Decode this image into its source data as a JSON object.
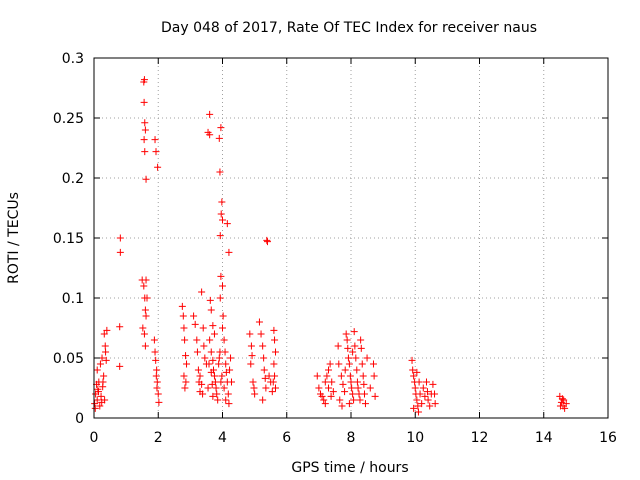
{
  "chart_data": {
    "type": "scatter",
    "title": "Day 048 of 2017, Rate Of TEC Index for receiver naus",
    "xlabel": "GPS time / hours",
    "ylabel": "ROTI / TECUs",
    "xlim": [
      0,
      16
    ],
    "ylim": [
      0,
      0.3
    ],
    "xticks": [
      0,
      2,
      4,
      6,
      8,
      10,
      12,
      14,
      16
    ],
    "yticks": [
      0,
      0.05,
      0.1,
      0.15,
      0.2,
      0.25,
      0.3
    ],
    "xtick_labels": [
      "0",
      "2",
      "4",
      "6",
      "8",
      "10",
      "12",
      "14",
      "16"
    ],
    "ytick_labels": [
      "0",
      "0.05",
      "0.1",
      "0.15",
      "0.2",
      "0.25",
      "0.3"
    ],
    "grid": true,
    "marker": "+",
    "color": "#ff0000",
    "series": [
      {
        "name": "ROTI",
        "points": [
          [
            0.02,
            0.012
          ],
          [
            0.05,
            0.02
          ],
          [
            0.08,
            0.028
          ],
          [
            0.1,
            0.015
          ],
          [
            0.12,
            0.024
          ],
          [
            0.15,
            0.03
          ],
          [
            0.18,
            0.01
          ],
          [
            0.2,
            0.045
          ],
          [
            0.22,
            0.018
          ],
          [
            0.25,
            0.05
          ],
          [
            0.27,
            0.026
          ],
          [
            0.3,
            0.035
          ],
          [
            0.32,
            0.07
          ],
          [
            0.35,
            0.06
          ],
          [
            0.38,
            0.048
          ],
          [
            0.4,
            0.073
          ],
          [
            0.04,
            0.008
          ],
          [
            0.1,
            0.04
          ],
          [
            0.14,
            0.022
          ],
          [
            0.24,
            0.013
          ],
          [
            0.28,
            0.03
          ],
          [
            0.33,
            0.015
          ],
          [
            0.36,
            0.055
          ],
          [
            0.8,
            0.043
          ],
          [
            0.8,
            0.076
          ],
          [
            0.82,
            0.138
          ],
          [
            0.82,
            0.15
          ],
          [
            1.55,
            0.28
          ],
          [
            1.57,
            0.282
          ],
          [
            1.56,
            0.263
          ],
          [
            1.58,
            0.246
          ],
          [
            1.6,
            0.24
          ],
          [
            1.56,
            0.232
          ],
          [
            1.58,
            0.222
          ],
          [
            1.62,
            0.199
          ],
          [
            1.5,
            0.115
          ],
          [
            1.55,
            0.11
          ],
          [
            1.58,
            0.1
          ],
          [
            1.6,
            0.09
          ],
          [
            1.62,
            0.085
          ],
          [
            1.52,
            0.075
          ],
          [
            1.57,
            0.07
          ],
          [
            1.6,
            0.06
          ],
          [
            1.65,
            0.1
          ],
          [
            1.62,
            0.115
          ],
          [
            1.9,
            0.232
          ],
          [
            1.93,
            0.222
          ],
          [
            1.98,
            0.209
          ],
          [
            1.88,
            0.065
          ],
          [
            1.9,
            0.055
          ],
          [
            1.92,
            0.048
          ],
          [
            1.95,
            0.04
          ],
          [
            1.97,
            0.03
          ],
          [
            2.0,
            0.02
          ],
          [
            2.02,
            0.013
          ],
          [
            1.94,
            0.035
          ],
          [
            1.96,
            0.025
          ],
          [
            2.75,
            0.093
          ],
          [
            2.78,
            0.085
          ],
          [
            2.8,
            0.075
          ],
          [
            2.82,
            0.065
          ],
          [
            2.85,
            0.052
          ],
          [
            2.88,
            0.045
          ],
          [
            2.8,
            0.035
          ],
          [
            2.83,
            0.025
          ],
          [
            2.86,
            0.03
          ],
          [
            3.1,
            0.085
          ],
          [
            3.15,
            0.078
          ],
          [
            3.2,
            0.065
          ],
          [
            3.22,
            0.055
          ],
          [
            3.25,
            0.04
          ],
          [
            3.27,
            0.03
          ],
          [
            3.3,
            0.022
          ],
          [
            3.35,
            0.105
          ],
          [
            3.4,
            0.075
          ],
          [
            3.42,
            0.06
          ],
          [
            3.45,
            0.05
          ],
          [
            3.3,
            0.035
          ],
          [
            3.35,
            0.028
          ],
          [
            3.38,
            0.02
          ],
          [
            3.5,
            0.045
          ],
          [
            3.55,
            0.025
          ],
          [
            3.55,
            0.238
          ],
          [
            3.6,
            0.236
          ],
          [
            3.6,
            0.253
          ],
          [
            3.65,
            0.09
          ],
          [
            3.62,
            0.098
          ],
          [
            3.7,
            0.077
          ],
          [
            3.75,
            0.07
          ],
          [
            3.6,
            0.065
          ],
          [
            3.65,
            0.055
          ],
          [
            3.7,
            0.048
          ],
          [
            3.72,
            0.04
          ],
          [
            3.75,
            0.035
          ],
          [
            3.78,
            0.03
          ],
          [
            3.8,
            0.025
          ],
          [
            3.82,
            0.02
          ],
          [
            3.85,
            0.015
          ],
          [
            3.88,
            0.045
          ],
          [
            3.9,
            0.05
          ],
          [
            3.92,
            0.055
          ],
          [
            3.95,
            0.03
          ],
          [
            3.65,
            0.038
          ],
          [
            3.68,
            0.028
          ],
          [
            3.7,
            0.018
          ],
          [
            3.58,
            0.045
          ],
          [
            3.9,
            0.233
          ],
          [
            3.95,
            0.242
          ],
          [
            3.92,
            0.205
          ],
          [
            3.98,
            0.18
          ],
          [
            3.96,
            0.17
          ],
          [
            4.0,
            0.165
          ],
          [
            3.93,
            0.152
          ],
          [
            4.15,
            0.162
          ],
          [
            4.2,
            0.138
          ],
          [
            3.95,
            0.118
          ],
          [
            4.0,
            0.11
          ],
          [
            3.93,
            0.1
          ],
          [
            4.02,
            0.085
          ],
          [
            4.0,
            0.075
          ],
          [
            4.05,
            0.065
          ],
          [
            4.08,
            0.055
          ],
          [
            4.1,
            0.045
          ],
          [
            4.12,
            0.038
          ],
          [
            4.15,
            0.03
          ],
          [
            4.18,
            0.02
          ],
          [
            4.2,
            0.012
          ],
          [
            4.25,
            0.05
          ],
          [
            4.22,
            0.04
          ],
          [
            3.98,
            0.035
          ],
          [
            4.05,
            0.025
          ],
          [
            4.1,
            0.015
          ],
          [
            4.28,
            0.03
          ],
          [
            4.85,
            0.07
          ],
          [
            4.9,
            0.06
          ],
          [
            4.92,
            0.052
          ],
          [
            4.95,
            0.03
          ],
          [
            4.98,
            0.025
          ],
          [
            5.0,
            0.02
          ],
          [
            4.88,
            0.045
          ],
          [
            5.15,
            0.08
          ],
          [
            5.2,
            0.07
          ],
          [
            5.25,
            0.06
          ],
          [
            5.28,
            0.05
          ],
          [
            5.3,
            0.04
          ],
          [
            5.33,
            0.033
          ],
          [
            5.35,
            0.025
          ],
          [
            5.25,
            0.015
          ],
          [
            5.4,
            0.147
          ],
          [
            5.38,
            0.148
          ],
          [
            5.45,
            0.035
          ],
          [
            5.5,
            0.03
          ],
          [
            5.55,
            0.022
          ],
          [
            5.6,
            0.073
          ],
          [
            5.62,
            0.065
          ],
          [
            5.65,
            0.055
          ],
          [
            5.6,
            0.045
          ],
          [
            5.62,
            0.035
          ],
          [
            5.65,
            0.025
          ],
          [
            5.58,
            0.03
          ],
          [
            6.95,
            0.035
          ],
          [
            7.0,
            0.025
          ],
          [
            7.05,
            0.02
          ],
          [
            7.1,
            0.018
          ],
          [
            7.2,
            0.03
          ],
          [
            7.25,
            0.035
          ],
          [
            7.3,
            0.04
          ],
          [
            7.35,
            0.045
          ],
          [
            7.4,
            0.03
          ],
          [
            7.15,
            0.015
          ],
          [
            7.3,
            0.025
          ],
          [
            7.45,
            0.022
          ],
          [
            7.2,
            0.012
          ],
          [
            7.38,
            0.018
          ],
          [
            7.6,
            0.06
          ],
          [
            7.62,
            0.045
          ],
          [
            7.7,
            0.035
          ],
          [
            7.75,
            0.028
          ],
          [
            7.8,
            0.022
          ],
          [
            7.65,
            0.015
          ],
          [
            7.72,
            0.01
          ],
          [
            7.82,
            0.04
          ],
          [
            7.85,
            0.07
          ],
          [
            7.88,
            0.065
          ],
          [
            7.9,
            0.058
          ],
          [
            7.92,
            0.05
          ],
          [
            7.95,
            0.045
          ],
          [
            7.98,
            0.035
          ],
          [
            8.0,
            0.03
          ],
          [
            8.02,
            0.025
          ],
          [
            8.05,
            0.02
          ],
          [
            8.08,
            0.015
          ],
          [
            8.1,
            0.072
          ],
          [
            8.12,
            0.06
          ],
          [
            8.15,
            0.05
          ],
          [
            8.18,
            0.04
          ],
          [
            8.2,
            0.03
          ],
          [
            8.22,
            0.025
          ],
          [
            8.25,
            0.02
          ],
          [
            8.28,
            0.015
          ],
          [
            8.3,
            0.065
          ],
          [
            8.32,
            0.058
          ],
          [
            8.35,
            0.045
          ],
          [
            8.38,
            0.035
          ],
          [
            8.4,
            0.028
          ],
          [
            8.42,
            0.02
          ],
          [
            8.45,
            0.012
          ],
          [
            8.5,
            0.05
          ],
          [
            8.6,
            0.025
          ],
          [
            8.7,
            0.045
          ],
          [
            8.72,
            0.035
          ],
          [
            8.75,
            0.018
          ],
          [
            7.95,
            0.012
          ],
          [
            8.05,
            0.055
          ],
          [
            9.9,
            0.048
          ],
          [
            9.92,
            0.04
          ],
          [
            9.95,
            0.035
          ],
          [
            9.98,
            0.03
          ],
          [
            10.0,
            0.025
          ],
          [
            10.02,
            0.02
          ],
          [
            10.05,
            0.015
          ],
          [
            10.08,
            0.01
          ],
          [
            10.1,
            0.005
          ],
          [
            10.12,
            0.03
          ],
          [
            10.15,
            0.02
          ],
          [
            10.2,
            0.012
          ],
          [
            10.25,
            0.025
          ],
          [
            10.3,
            0.018
          ],
          [
            10.35,
            0.03
          ],
          [
            10.38,
            0.022
          ],
          [
            10.4,
            0.015
          ],
          [
            10.45,
            0.01
          ],
          [
            10.5,
            0.02
          ],
          [
            10.55,
            0.028
          ],
          [
            10.6,
            0.02
          ],
          [
            10.62,
            0.012
          ],
          [
            9.95,
            0.008
          ],
          [
            10.05,
            0.038
          ],
          [
            14.5,
            0.018
          ],
          [
            14.55,
            0.013
          ],
          [
            14.6,
            0.01
          ],
          [
            14.62,
            0.015
          ],
          [
            14.65,
            0.008
          ],
          [
            14.7,
            0.012
          ],
          [
            14.52,
            0.01
          ],
          [
            14.58,
            0.016
          ]
        ]
      }
    ]
  }
}
